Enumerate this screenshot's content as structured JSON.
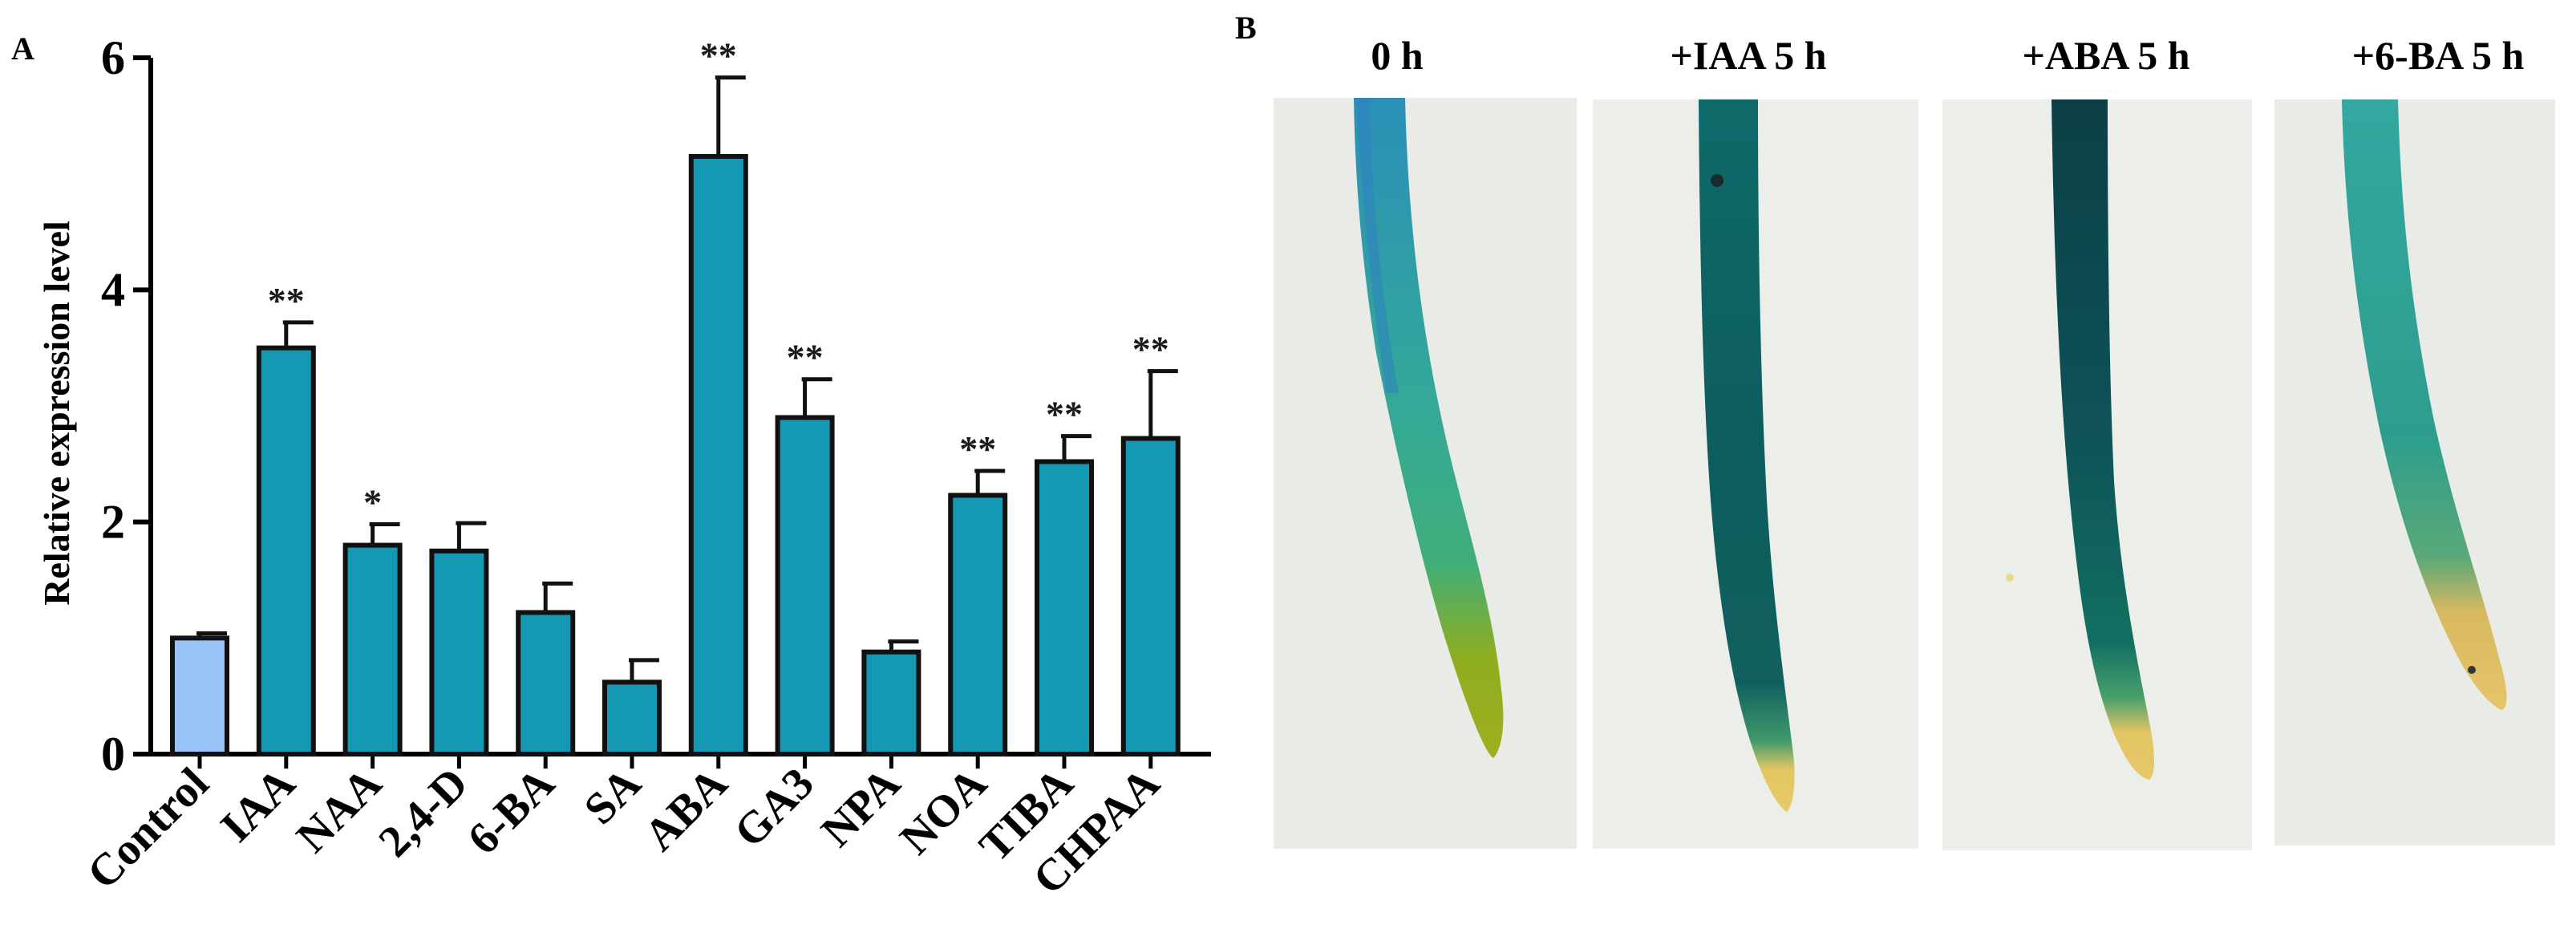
{
  "panels": {
    "a_letter": "A",
    "b_letter": "B"
  },
  "chart_data": {
    "type": "bar",
    "title": "",
    "xlabel": "",
    "ylabel": "Relative expression level",
    "ylim": [
      0,
      6
    ],
    "yticks": [
      0,
      2,
      4,
      6
    ],
    "categories": [
      "Control",
      "IAA",
      "NAA",
      "2,4-D",
      "6-BA",
      "SA",
      "ABA",
      "GA3",
      "NPA",
      "NOA",
      "TIBA",
      "CHPAA"
    ],
    "values": [
      1.0,
      3.5,
      1.8,
      1.75,
      1.22,
      0.62,
      5.15,
      2.9,
      0.88,
      2.23,
      2.52,
      2.72
    ],
    "errors": [
      0.04,
      0.22,
      0.18,
      0.24,
      0.25,
      0.19,
      0.68,
      0.33,
      0.09,
      0.21,
      0.22,
      0.58
    ],
    "significance": [
      "",
      "**",
      "*",
      "",
      "",
      "",
      "**",
      "**",
      "",
      "**",
      "**",
      "**"
    ],
    "colors": {
      "control": "#99c2f7",
      "treatment": "#1498b4",
      "outline": "#111111"
    },
    "grid": false,
    "legend": "none"
  },
  "photos": {
    "labels": [
      "0 h",
      "+IAA 5 h",
      "+ABA 5 h",
      "+6-BA 5 h"
    ],
    "colors": {
      "background": "#e9ebe6",
      "stain_light": "#2a9b8e",
      "stain_dark": "#0d4f52",
      "tip_green": "#8fae1e",
      "tip_yellow": "#e2c563"
    }
  }
}
